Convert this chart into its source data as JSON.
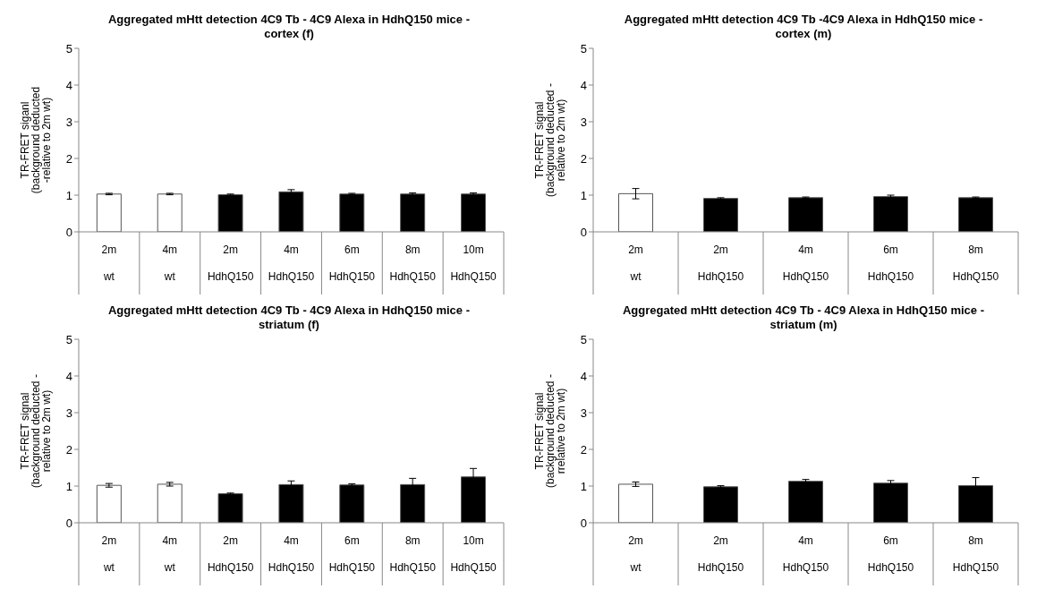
{
  "chart_data": [
    {
      "type": "bar",
      "title": "Aggregated mHtt detection 4C9 Tb - 4C9 Alexa in HdhQ150 mice - cortex (f)",
      "ylabel": "TR-FRET siganl (background deducted -relative to 2m wt)",
      "categories": [
        "2m\nwt",
        "4m\nwt",
        "2m\nHdhQ150",
        "4m\nHdhQ150",
        "6m\nHdhQ150",
        "8m\nHdhQ150",
        "10m\nHdhQ150"
      ],
      "values": [
        1.03,
        1.03,
        1.01,
        1.09,
        1.03,
        1.03,
        1.03
      ],
      "errors": [
        0.02,
        0.02,
        0.02,
        0.06,
        0.02,
        0.03,
        0.03
      ],
      "colors": [
        "#ffffff",
        "#ffffff",
        "#000000",
        "#000000",
        "#000000",
        "#000000",
        "#000000"
      ],
      "ylim": [
        0,
        5
      ],
      "yticks": [
        0,
        1,
        2,
        3,
        4,
        5
      ]
    },
    {
      "type": "bar",
      "title": "Aggregated mHtt detection 4C9 Tb -4C9 Alexa in HdhQ150 mice - cortex (m)",
      "ylabel": "TR-FRET signal (background deducted - relative to 2m wt)",
      "categories": [
        "2m\nwt",
        "2m\nHdhQ150",
        "4m\nHdhQ150",
        "6m\nHdhQ150",
        "8m\nHdhQ150"
      ],
      "values": [
        1.04,
        0.91,
        0.93,
        0.96,
        0.93
      ],
      "errors": [
        0.14,
        0.02,
        0.02,
        0.04,
        0.02
      ],
      "colors": [
        "#ffffff",
        "#000000",
        "#000000",
        "#000000",
        "#000000"
      ],
      "ylim": [
        0,
        5
      ],
      "yticks": [
        0,
        1,
        2,
        3,
        4,
        5
      ]
    },
    {
      "type": "bar",
      "title": "Aggregated mHtt detection 4C9 Tb - 4C9 Alexa in HdhQ150 mice - striatum (f)",
      "ylabel": "TR-FRET signal (background deducted - relative to 2m wt)",
      "categories": [
        "2m\nwt",
        "4m\nwt",
        "2m\nHdhQ150",
        "4m\nHdhQ150",
        "6m\nHdhQ150",
        "8m\nHdhQ150",
        "10m\nHdhQ150"
      ],
      "values": [
        1.02,
        1.05,
        0.79,
        1.04,
        1.03,
        1.04,
        1.25
      ],
      "errors": [
        0.05,
        0.05,
        0.02,
        0.1,
        0.03,
        0.17,
        0.23
      ],
      "colors": [
        "#ffffff",
        "#ffffff",
        "#000000",
        "#000000",
        "#000000",
        "#000000",
        "#000000"
      ],
      "ylim": [
        0,
        5
      ],
      "yticks": [
        0,
        1,
        2,
        3,
        4,
        5
      ]
    },
    {
      "type": "bar",
      "title": "Aggregated mHtt detection 4C9 Tb - 4C9 Alexa in HdhQ150 mice - striatum (m)",
      "ylabel": "TR-FRET signal (background deducted - rrelative to 2m wt)",
      "categories": [
        "2m\nwt",
        "2m\nHdhQ150",
        "4m\nHdhQ150",
        "6m\nHdhQ150",
        "8m\nHdhQ150"
      ],
      "values": [
        1.05,
        0.98,
        1.13,
        1.08,
        1.01
      ],
      "errors": [
        0.06,
        0.03,
        0.05,
        0.07,
        0.22
      ],
      "colors": [
        "#ffffff",
        "#000000",
        "#000000",
        "#000000",
        "#000000"
      ],
      "ylim": [
        0,
        5
      ],
      "yticks": [
        0,
        1,
        2,
        3,
        4,
        5
      ]
    }
  ]
}
